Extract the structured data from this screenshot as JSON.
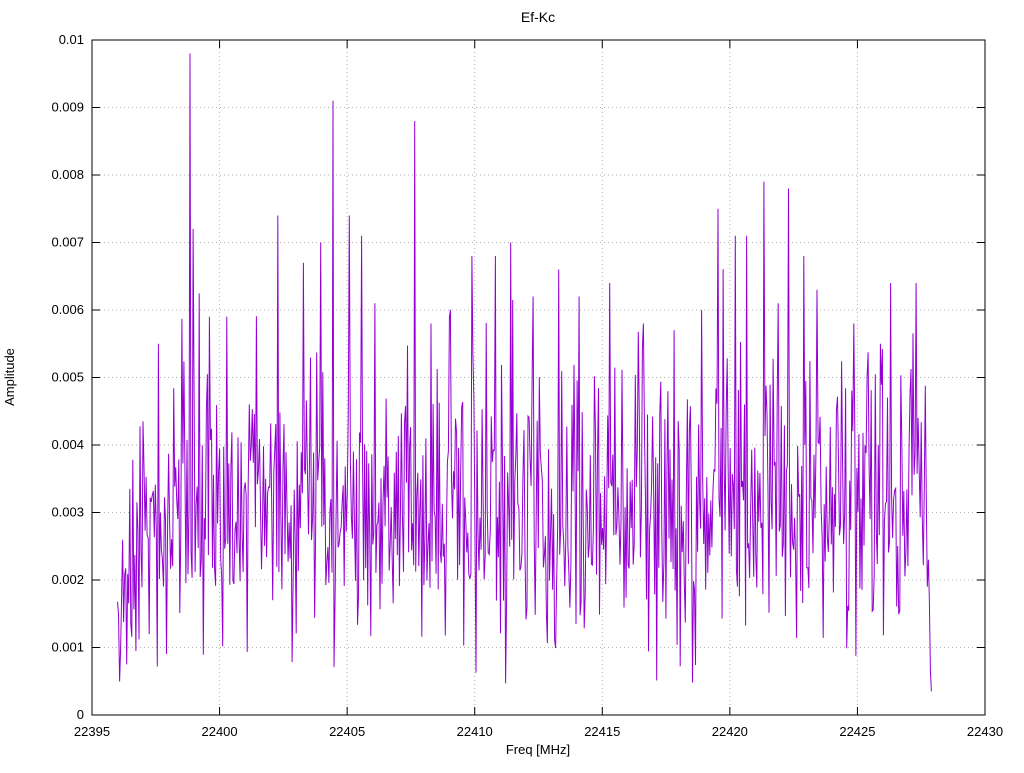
{
  "chart_data": {
    "type": "line",
    "title": "Ef-Kc",
    "xlabel": "Freq [MHz]",
    "ylabel": "Amplitude",
    "xlim": [
      22395,
      22430
    ],
    "ylim": [
      0,
      0.01
    ],
    "x_ticks": [
      22395,
      22400,
      22405,
      22410,
      22415,
      22420,
      22425,
      22430
    ],
    "x_tick_labels": [
      "22395",
      "22400",
      "22405",
      "22410",
      "22415",
      "22420",
      "22425",
      "22430"
    ],
    "y_ticks": [
      0,
      0.001,
      0.002,
      0.003,
      0.004,
      0.005,
      0.006,
      0.007,
      0.008,
      0.009,
      0.01
    ],
    "y_tick_labels": [
      "0",
      "0.001",
      "0.002",
      "0.003",
      "0.004",
      "0.005",
      "0.006",
      "0.007",
      "0.008",
      "0.009",
      "0.01"
    ],
    "grid": true,
    "legend": "none",
    "line_color": "#9400D3",
    "grid_color": "#b0b0b0",
    "border_color": "#000000",
    "series_x_start": 22396.0,
    "series_x_end": 22427.9,
    "num_points": 798,
    "noise": {
      "mean": 0.003,
      "std": 0.0011,
      "min": 0.0002,
      "seed": 20231117,
      "spike_prob": 0.05,
      "spike_extra": 0.0018,
      "edge_ramp_mhz": 1.2,
      "edge_start_factor": 0.45,
      "tail_mhz": 0.3,
      "tail_end_factor": 0.15
    },
    "peaks": [
      [
        22398.85,
        0.0098
      ],
      [
        22398.95,
        0.0072
      ],
      [
        22397.6,
        0.0055
      ],
      [
        22399.6,
        0.0059
      ],
      [
        22400.3,
        0.0059
      ],
      [
        22402.3,
        0.0074
      ],
      [
        22403.3,
        0.0067
      ],
      [
        22403.95,
        0.007
      ],
      [
        22404.45,
        0.0091
      ],
      [
        22405.1,
        0.0074
      ],
      [
        22405.55,
        0.0071
      ],
      [
        22406.1,
        0.0061
      ],
      [
        22407.65,
        0.0088
      ],
      [
        22408.3,
        0.0058
      ],
      [
        22409.0,
        0.0059
      ],
      [
        22409.9,
        0.0068
      ],
      [
        22410.8,
        0.0068
      ],
      [
        22411.4,
        0.007
      ],
      [
        22412.3,
        0.0062
      ],
      [
        22413.3,
        0.0066
      ],
      [
        22414.1,
        0.0062
      ],
      [
        22415.3,
        0.0064
      ],
      [
        22416.6,
        0.0058
      ],
      [
        22417.8,
        0.0057
      ],
      [
        22418.9,
        0.006
      ],
      [
        22419.55,
        0.0075
      ],
      [
        22420.2,
        0.0071
      ],
      [
        22420.65,
        0.0071
      ],
      [
        22421.35,
        0.0079
      ],
      [
        22421.9,
        0.0061
      ],
      [
        22422.3,
        0.0078
      ],
      [
        22422.9,
        0.0068
      ],
      [
        22423.4,
        0.0063
      ],
      [
        22424.85,
        0.0058
      ],
      [
        22425.9,
        0.0055
      ],
      [
        22426.3,
        0.0064
      ],
      [
        22427.3,
        0.0064
      ]
    ]
  }
}
